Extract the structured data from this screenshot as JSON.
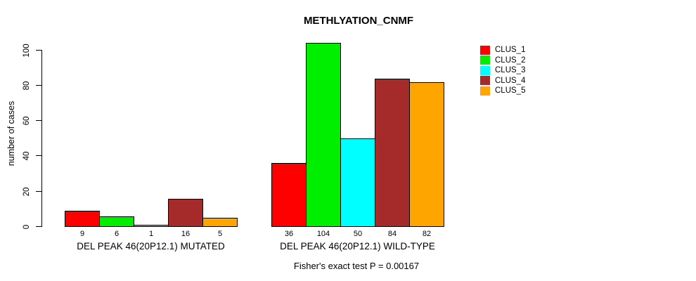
{
  "title": "METHLYATION_CNMF",
  "subtitle": "Fisher's exact test P = 0.00167",
  "y_axis": {
    "label": "number of cases",
    "ticks": [
      0,
      20,
      40,
      60,
      80,
      100
    ]
  },
  "legend": {
    "position": "right",
    "items": [
      {
        "label": "CLUS_1",
        "color": "#FF0000"
      },
      {
        "label": "CLUS_2",
        "color": "#00EE00"
      },
      {
        "label": "CLUS_3",
        "color": "#00FFFF"
      },
      {
        "label": "CLUS_4",
        "color": "#A52A2A"
      },
      {
        "label": "CLUS_5",
        "color": "#FFA500"
      }
    ]
  },
  "chart_data": {
    "type": "bar",
    "title": "METHLYATION_CNMF",
    "xlabel": "",
    "ylabel": "number of cases",
    "ylim": [
      0,
      104
    ],
    "yticks": [
      0,
      20,
      40,
      60,
      80,
      100
    ],
    "grid": false,
    "legend_position": "right",
    "series_names": [
      "CLUS_1",
      "CLUS_2",
      "CLUS_3",
      "CLUS_4",
      "CLUS_5"
    ],
    "series_colors": [
      "#FF0000",
      "#00EE00",
      "#00FFFF",
      "#A52A2A",
      "#FFA500"
    ],
    "groups": [
      {
        "label": "DEL PEAK 46(20P12.1) MUTATED",
        "values": [
          9,
          6,
          1,
          16,
          5
        ]
      },
      {
        "label": "DEL PEAK 46(20P12.1) WILD-TYPE",
        "values": [
          36,
          104,
          50,
          84,
          82
        ]
      }
    ],
    "bar_value_labels_shown": true,
    "annotation": "Fisher's exact test P = 0.00167"
  }
}
